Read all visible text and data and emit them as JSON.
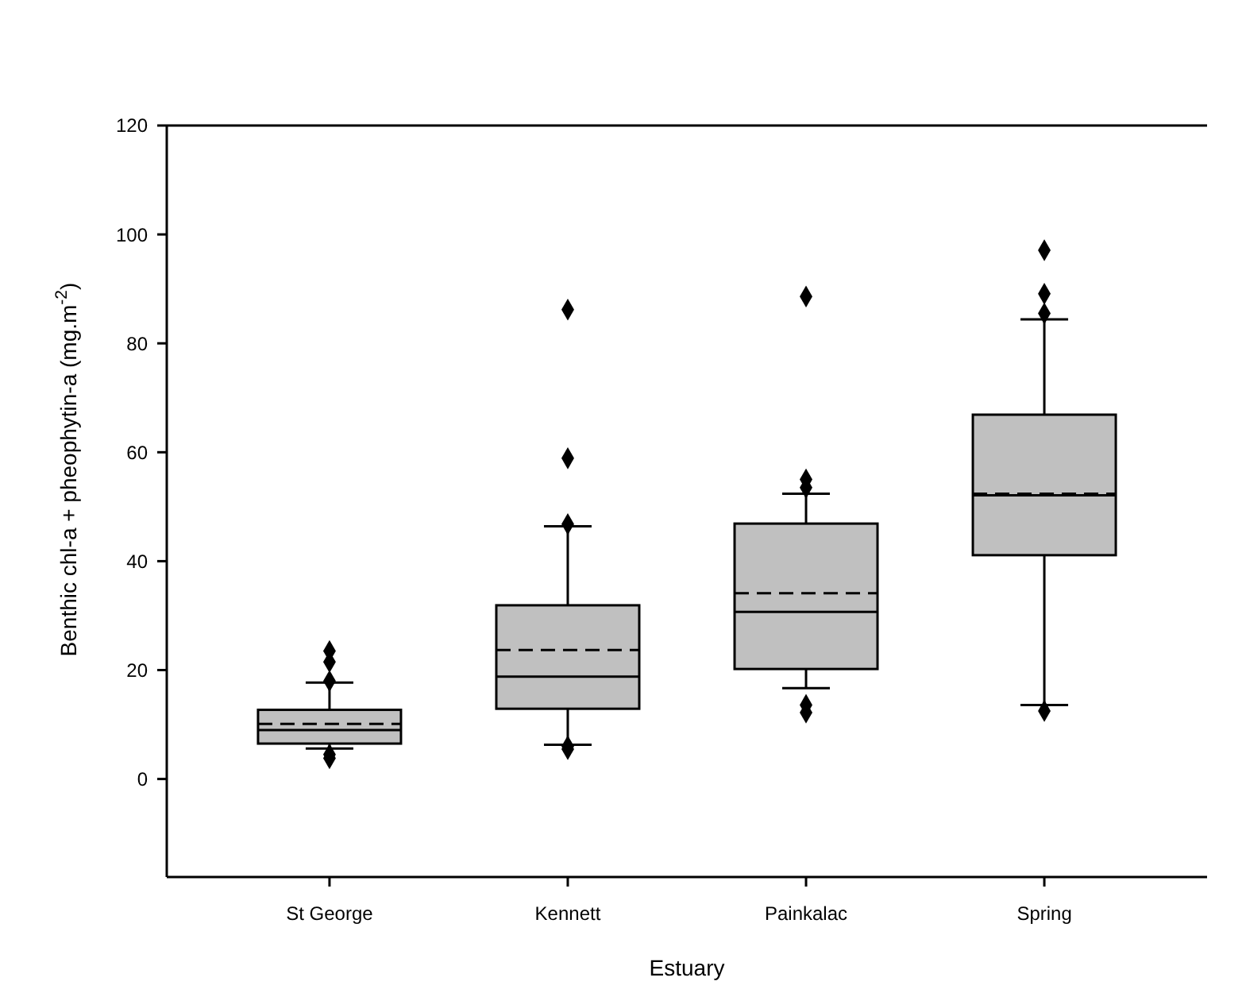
{
  "chart_data": {
    "type": "box",
    "xlabel": "Estuary",
    "ylabel": "Benthic chl-a + pheophytin-a (mg.m$^{-2}$)",
    "categories": [
      "St George",
      "Kennett",
      "Painkalac",
      "Spring"
    ],
    "color": "#c0c0c0",
    "boxes": [
      {
        "low": 5.6,
        "q1": 6.5,
        "median": 9.0,
        "q3": 12.7,
        "high": 17.7,
        "mean": 10.1,
        "outliers": [
          23.5,
          21.5,
          18,
          4.5,
          3.8
        ]
      },
      {
        "low": 6.3,
        "q1": 12.9,
        "median": 18.8,
        "q3": 31.9,
        "high": 46.4,
        "mean": 23.7,
        "outliers": [
          86.2,
          58.9,
          46.8,
          6,
          5.5
        ]
      },
      {
        "low": 16.7,
        "q1": 20.2,
        "median": 30.7,
        "q3": 46.9,
        "high": 52.4,
        "mean": 34.1,
        "outliers": [
          88.6,
          55,
          53.5,
          13.6,
          12.2
        ]
      },
      {
        "low": 13.6,
        "q1": 41.1,
        "median": 52.1,
        "q3": 66.9,
        "high": 84.4,
        "mean": 52.4,
        "outliers": [
          97.1,
          89.1,
          85.5,
          12.5
        ]
      }
    ],
    "ylim": [
      -18,
      120
    ],
    "yticks": [
      0,
      20,
      40,
      60,
      80,
      100,
      120
    ],
    "grid": false
  }
}
